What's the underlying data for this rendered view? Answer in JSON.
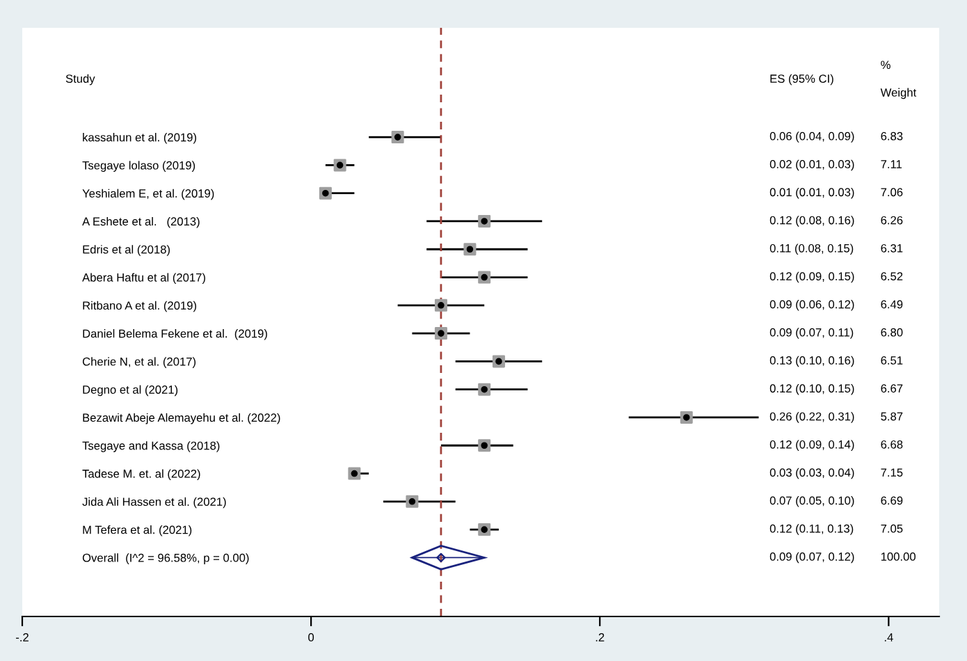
{
  "chart_data": {
    "type": "scatter",
    "orientation": "horizontal",
    "categories": [
      "kassahun et al. (2019)",
      "Tsegaye lolaso (2019)",
      "Yeshialem E, et al. (2019)",
      "A Eshete et al.   (2013)",
      "Edris et al (2018)",
      "Abera Haftu et al (2017)",
      "Ritbano A et al. (2019)",
      "Daniel Belema Fekene et al.  (2019)",
      "Cherie N, et al. (2017)",
      "Degno et al (2021)",
      "Bezawit Abeje Alemayehu et al. (2022)",
      "Tsegaye and Kassa (2018)",
      "Tadese M. et. al (2022)",
      "Jida Ali Hassen et al. (2021)",
      "M Tefera et al. (2021)",
      "Overall  (I^2 = 96.58%, p = 0.00)"
    ],
    "series": [
      {
        "marker": "square",
        "color": "#000000",
        "values": [
          0.06,
          0.02,
          0.01,
          0.12,
          0.11,
          0.12,
          0.09,
          0.09,
          0.13,
          0.12,
          0.26,
          0.12,
          0.03,
          0.07,
          0.12,
          null
        ],
        "errors": [
          [
            0.04,
            0.09
          ],
          [
            0.01,
            0.03
          ],
          [
            0.01,
            0.03
          ],
          [
            0.08,
            0.16
          ],
          [
            0.08,
            0.15
          ],
          [
            0.09,
            0.15
          ],
          [
            0.06,
            0.12
          ],
          [
            0.07,
            0.11
          ],
          [
            0.1,
            0.16
          ],
          [
            0.1,
            0.15
          ],
          [
            0.22,
            0.31
          ],
          [
            0.09,
            0.14
          ],
          [
            0.03,
            0.04
          ],
          [
            0.05,
            0.1
          ],
          [
            0.11,
            0.13
          ],
          null
        ]
      },
      {
        "marker": "diamond",
        "color": "#1a237e",
        "values": [
          null,
          null,
          null,
          null,
          null,
          null,
          null,
          null,
          null,
          null,
          null,
          null,
          null,
          null,
          null,
          0.09
        ],
        "errors": [
          null,
          null,
          null,
          null,
          null,
          null,
          null,
          null,
          null,
          null,
          null,
          null,
          null,
          null,
          null,
          [
            0.07,
            0.12
          ]
        ]
      }
    ],
    "annotations": [
      "Study",
      "ES (95% CI)",
      "%\nWeight",
      "0.06 (0.04, 0.09)",
      "0.02 (0.01, 0.03)",
      "0.01 (0.01, 0.03)",
      "0.12 (0.08, 0.16)",
      "0.11 (0.08, 0.15)",
      "0.12 (0.09, 0.15)",
      "0.09 (0.06, 0.12)",
      "0.09 (0.07, 0.11)",
      "0.13 (0.10, 0.16)",
      "0.12 (0.10, 0.15)",
      "0.26 (0.22, 0.31)",
      "0.12 (0.09, 0.14)",
      "0.03 (0.03, 0.04)",
      "0.07 (0.05, 0.10)",
      "0.12 (0.11, 0.13)",
      "0.09 (0.07, 0.12)",
      "6.83",
      "7.11",
      "7.06",
      "6.26",
      "6.31",
      "6.52",
      "6.49",
      "6.80",
      "6.51",
      "6.67",
      "5.87",
      "6.68",
      "7.15",
      "6.69",
      "7.05",
      "100.00"
    ],
    "ref_lines": [
      {
        "axis": "x",
        "value": 0.09,
        "color": "#a0413a",
        "line_style": "dashed"
      }
    ],
    "xlim": [
      -0.2,
      0.435
    ],
    "xticks": [
      {
        "value": -0.2,
        "label": "-.2"
      },
      {
        "value": 0,
        "label": "0"
      },
      {
        "value": 0.2,
        "label": ".2"
      },
      {
        "value": 0.4,
        "label": ".4"
      }
    ],
    "grid": false,
    "legend": false
  }
}
